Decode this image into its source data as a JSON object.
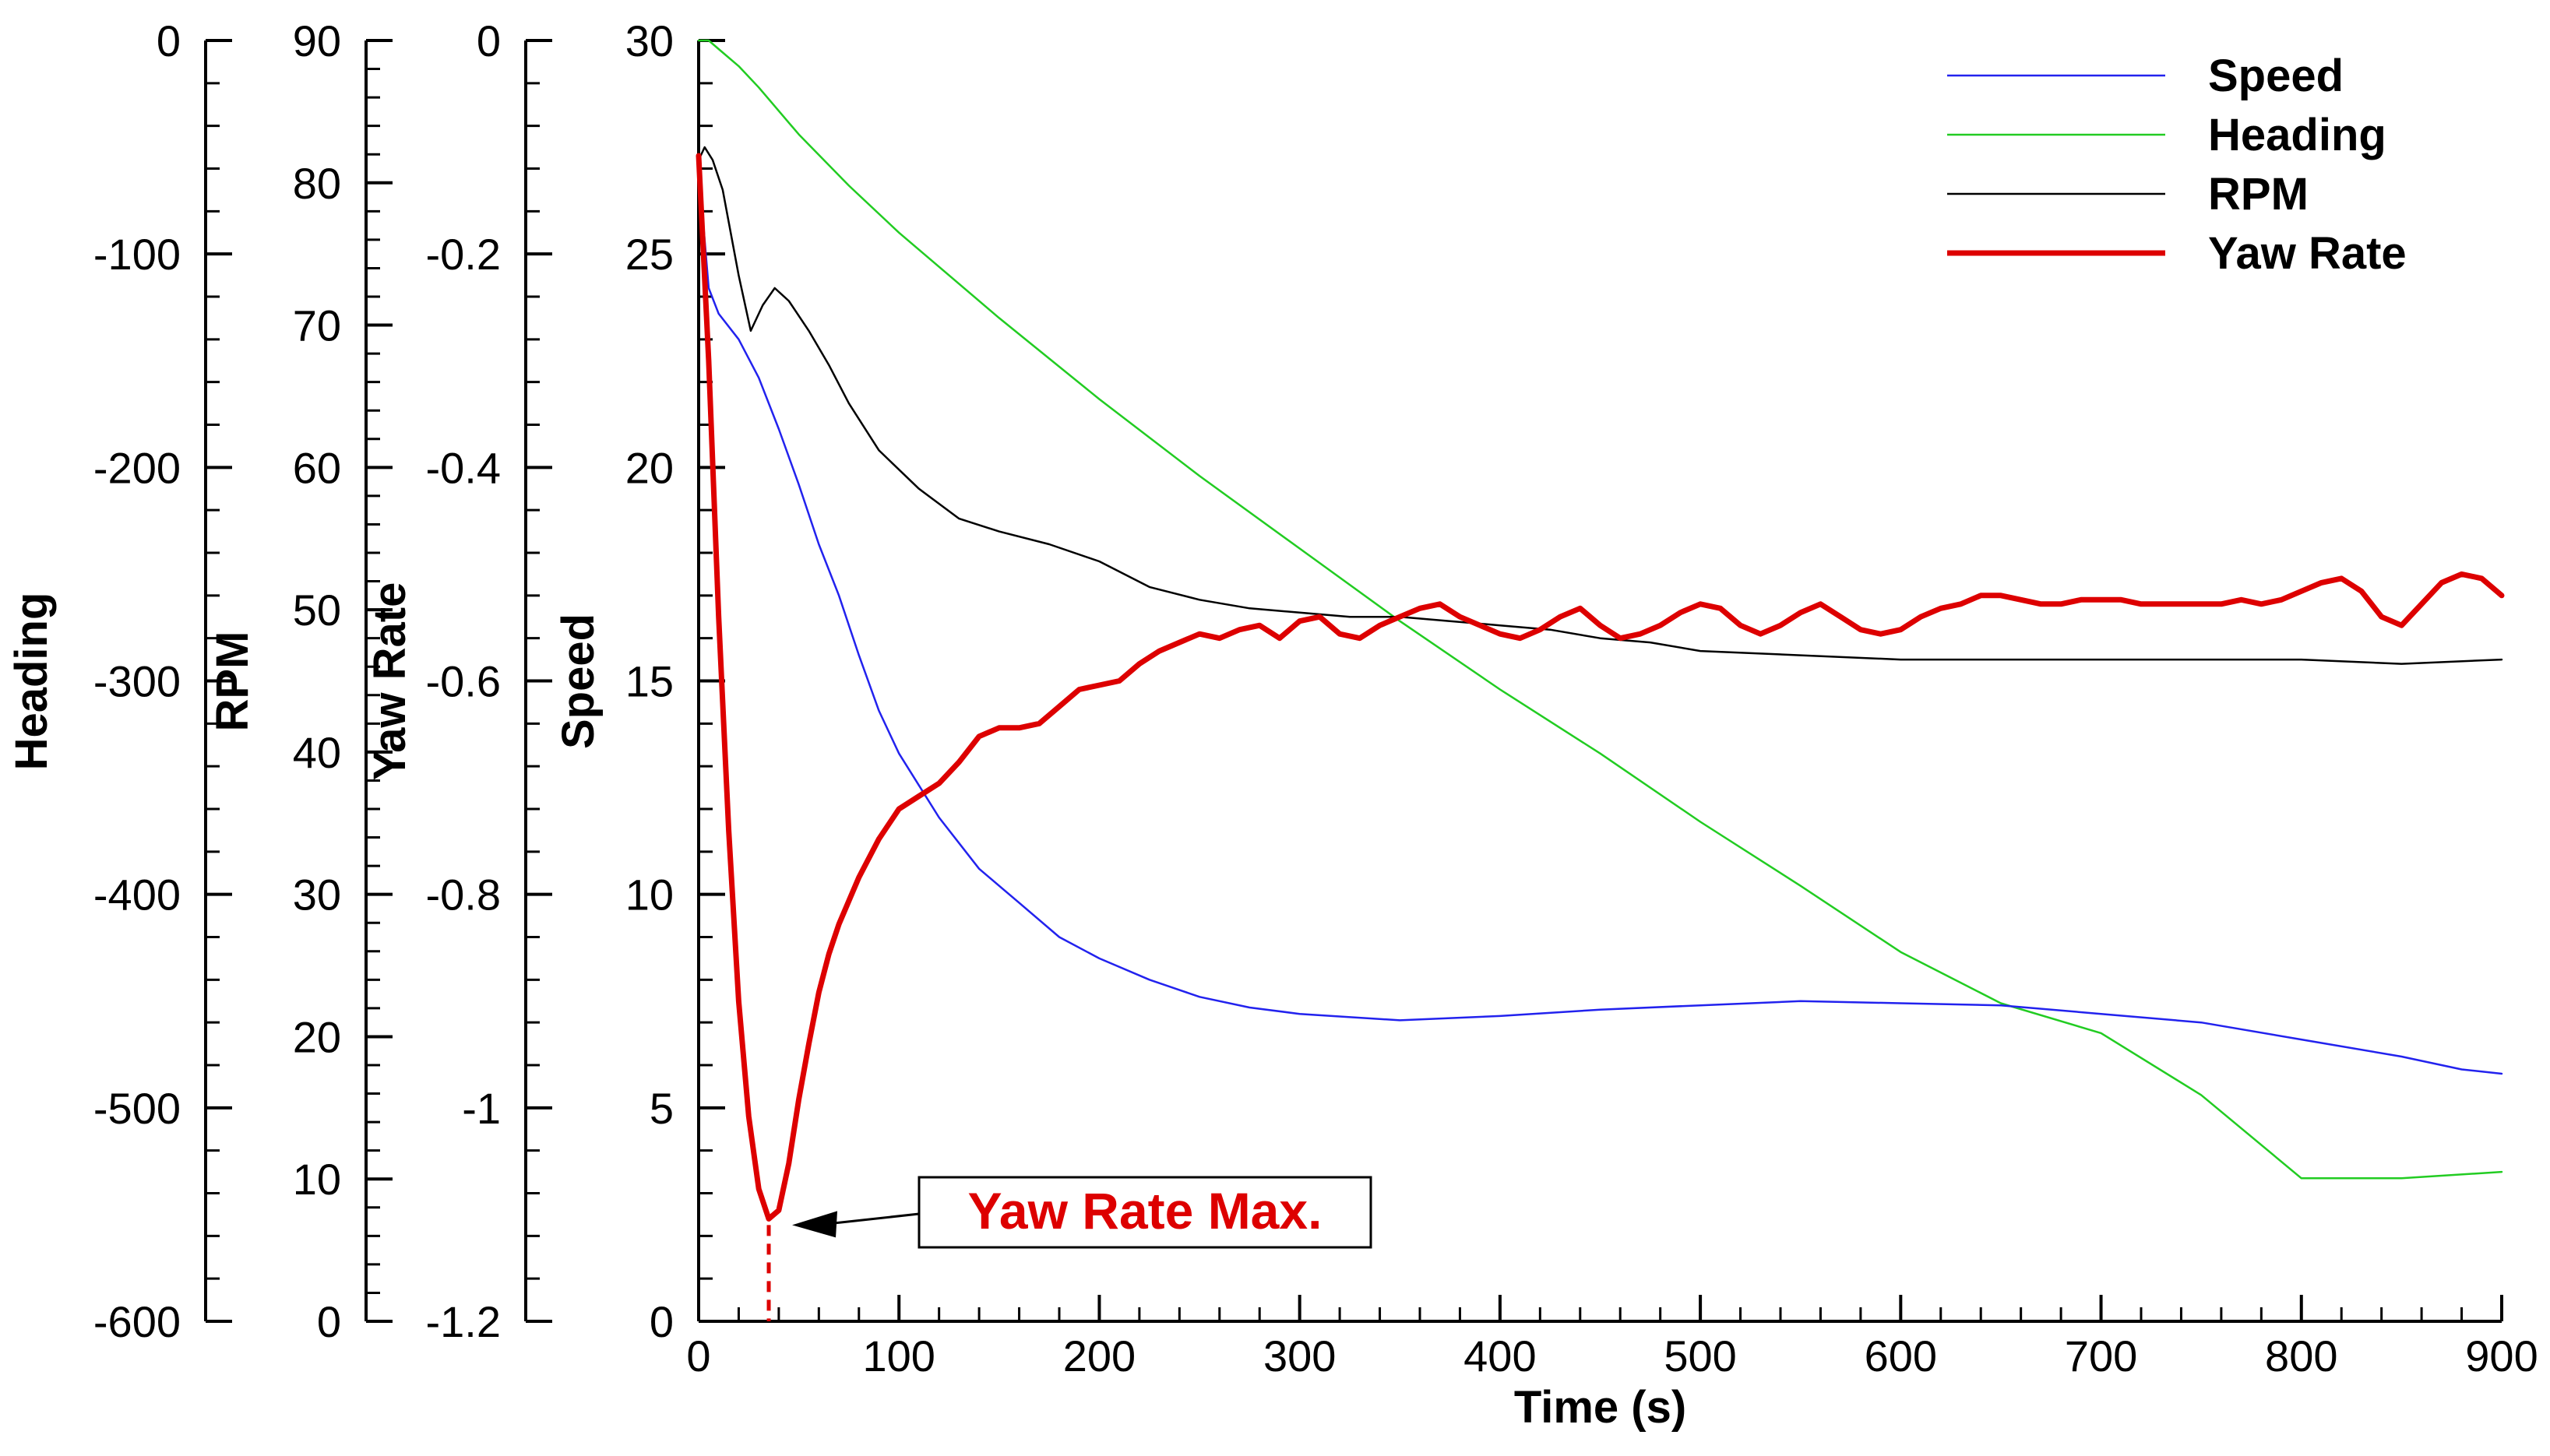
{
  "chart_data": {
    "type": "line",
    "xlabel": "Time (s)",
    "xlim": [
      0,
      900
    ],
    "xticks": [
      0,
      100,
      200,
      300,
      400,
      500,
      600,
      700,
      800,
      900
    ],
    "axes": [
      {
        "id": "heading",
        "label": "Heading",
        "lim": [
          -600,
          0
        ],
        "ticks": [
          0,
          -100,
          -200,
          -300,
          -400,
          -500,
          -600
        ]
      },
      {
        "id": "rpm",
        "label": "RPM",
        "lim": [
          0,
          90
        ],
        "ticks": [
          90,
          80,
          70,
          60,
          50,
          40,
          30,
          20,
          10,
          0
        ]
      },
      {
        "id": "yaw",
        "label": "Yaw Rate",
        "lim": [
          -1.2,
          0
        ],
        "ticks": [
          0,
          -0.2,
          -0.4,
          -0.6,
          -0.8,
          -1,
          -1.2
        ]
      },
      {
        "id": "speed",
        "label": "Speed",
        "lim": [
          0,
          30
        ],
        "ticks": [
          30,
          25,
          20,
          15,
          10,
          5,
          0
        ]
      }
    ],
    "series": [
      {
        "name": "Speed",
        "axis": "speed",
        "color": "#2222ee",
        "width": 2.5,
        "x": [
          0,
          5,
          10,
          20,
          30,
          40,
          50,
          60,
          70,
          80,
          90,
          100,
          120,
          140,
          160,
          180,
          200,
          225,
          250,
          275,
          300,
          350,
          400,
          450,
          500,
          550,
          600,
          650,
          700,
          750,
          800,
          850,
          880,
          900
        ],
        "y": [
          27.0,
          24.2,
          23.6,
          23.0,
          22.1,
          20.9,
          19.6,
          18.2,
          17.0,
          15.6,
          14.3,
          13.3,
          11.8,
          10.6,
          9.8,
          9.0,
          8.5,
          8.0,
          7.6,
          7.35,
          7.2,
          7.05,
          7.15,
          7.3,
          7.4,
          7.5,
          7.45,
          7.4,
          7.2,
          7.0,
          6.6,
          6.2,
          5.9,
          5.8
        ]
      },
      {
        "name": "Heading",
        "axis": "speed",
        "color": "#22cc22",
        "width": 2.5,
        "x": [
          0,
          5,
          10,
          20,
          30,
          50,
          75,
          100,
          150,
          200,
          250,
          300,
          350,
          400,
          450,
          500,
          550,
          600,
          650,
          700,
          750,
          800,
          850,
          900
        ],
        "y": [
          30.0,
          30.0,
          29.8,
          29.4,
          28.9,
          27.8,
          26.6,
          25.5,
          23.5,
          21.6,
          19.8,
          18.1,
          16.4,
          14.8,
          13.3,
          11.7,
          10.2,
          8.65,
          7.45,
          6.75,
          5.3,
          3.35,
          3.35,
          3.5
        ]
      },
      {
        "name": "RPM",
        "axis": "speed",
        "color": "#000000",
        "width": 2.5,
        "x": [
          0,
          3,
          7,
          12,
          20,
          26,
          32,
          38,
          45,
          55,
          65,
          75,
          90,
          110,
          130,
          150,
          175,
          200,
          225,
          250,
          275,
          300,
          325,
          350,
          375,
          400,
          425,
          450,
          475,
          500,
          550,
          600,
          650,
          700,
          750,
          800,
          850,
          900
        ],
        "y": [
          27.2,
          27.5,
          27.2,
          26.5,
          24.5,
          23.2,
          23.8,
          24.2,
          23.9,
          23.2,
          22.4,
          21.5,
          20.4,
          19.5,
          18.8,
          18.5,
          18.2,
          17.8,
          17.2,
          16.9,
          16.7,
          16.6,
          16.5,
          16.5,
          16.4,
          16.3,
          16.2,
          16.0,
          15.9,
          15.7,
          15.6,
          15.5,
          15.5,
          15.5,
          15.5,
          15.5,
          15.4,
          15.5
        ]
      },
      {
        "name": "Yaw Rate",
        "axis": "speed",
        "color": "#dd0000",
        "width": 7,
        "x": [
          0,
          5,
          10,
          15,
          20,
          25,
          30,
          35,
          40,
          45,
          50,
          55,
          60,
          65,
          70,
          80,
          90,
          100,
          110,
          120,
          130,
          140,
          150,
          160,
          170,
          180,
          190,
          200,
          210,
          220,
          230,
          240,
          250,
          260,
          270,
          280,
          290,
          300,
          310,
          320,
          330,
          340,
          350,
          360,
          370,
          380,
          390,
          400,
          410,
          420,
          430,
          440,
          450,
          460,
          470,
          480,
          490,
          500,
          510,
          520,
          530,
          540,
          550,
          560,
          570,
          580,
          590,
          600,
          610,
          620,
          630,
          640,
          650,
          660,
          670,
          680,
          690,
          700,
          710,
          720,
          730,
          740,
          750,
          760,
          770,
          780,
          790,
          800,
          810,
          820,
          830,
          840,
          850,
          860,
          870,
          880,
          890,
          900
        ],
        "y": [
          27.3,
          22.5,
          16.5,
          11.5,
          7.5,
          4.8,
          3.1,
          2.4,
          2.6,
          3.7,
          5.2,
          6.5,
          7.7,
          8.6,
          9.3,
          10.4,
          11.3,
          12.0,
          12.3,
          12.6,
          13.1,
          13.7,
          13.9,
          13.9,
          14.0,
          14.4,
          14.8,
          14.9,
          15.0,
          15.4,
          15.7,
          15.9,
          16.1,
          16.0,
          16.2,
          16.3,
          16.0,
          16.4,
          16.5,
          16.1,
          16.0,
          16.3,
          16.5,
          16.7,
          16.8,
          16.5,
          16.3,
          16.1,
          16.0,
          16.2,
          16.5,
          16.7,
          16.3,
          16.0,
          16.1,
          16.3,
          16.6,
          16.8,
          16.7,
          16.3,
          16.1,
          16.3,
          16.6,
          16.8,
          16.5,
          16.2,
          16.1,
          16.2,
          16.5,
          16.7,
          16.8,
          17.0,
          17.0,
          16.9,
          16.8,
          16.8,
          16.9,
          16.9,
          16.9,
          16.8,
          16.8,
          16.8,
          16.8,
          16.8,
          16.9,
          16.8,
          16.9,
          17.1,
          17.3,
          17.4,
          17.1,
          16.5,
          16.3,
          16.8,
          17.3,
          17.5,
          17.4,
          17.0
        ]
      }
    ],
    "legend": {
      "position": "top-right",
      "entries": [
        "Speed",
        "Heading",
        "RPM",
        "Yaw Rate"
      ]
    },
    "annotation": {
      "text": "Yaw Rate Max.",
      "x": 35,
      "y": 2.4
    }
  }
}
